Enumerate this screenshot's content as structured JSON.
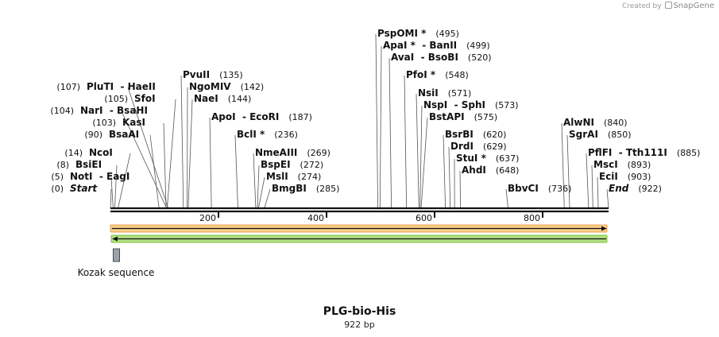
{
  "credit": {
    "created_by": "Created by",
    "brand": "SnapGene"
  },
  "map": {
    "title": "PLG-bio-His",
    "length_label": "922 bp",
    "total_bp": 922,
    "ruler_ticks": [
      200,
      400,
      600,
      800
    ],
    "colors": {
      "backbone": "#111111",
      "orange_feature": "#f5a623",
      "orange_border": "#e8a25a",
      "green_feature": "#8fd14f",
      "green_border": "#78c23c",
      "kozak_box": "#9aa3ad"
    },
    "features": [
      {
        "name": "kozak",
        "label": "Kozak sequence",
        "start": 8,
        "end": 20
      }
    ],
    "sites": [
      {
        "label": "Start",
        "pos": 0,
        "pos_label": "(0)",
        "side": "left",
        "italic": true
      },
      {
        "label": "NotI  - EagI",
        "pos": 5,
        "pos_label": "(5)",
        "side": "left"
      },
      {
        "label": "BsiEI",
        "pos": 8,
        "pos_label": "(8)",
        "side": "left"
      },
      {
        "label": "NcoI",
        "pos": 14,
        "pos_label": "(14)",
        "side": "left"
      },
      {
        "label": "BsaAI",
        "pos": 90,
        "pos_label": "(90)",
        "side": "left"
      },
      {
        "label": "KasI",
        "pos": 103,
        "pos_label": "(103)",
        "side": "left"
      },
      {
        "label": "NarI  - BsaHI",
        "pos": 104,
        "pos_label": "(104)",
        "side": "left"
      },
      {
        "label": "SfoI",
        "pos": 105,
        "pos_label": "(105)",
        "side": "left"
      },
      {
        "label": "PluTI  - HaeII",
        "pos": 107,
        "pos_label": "(107)",
        "side": "left"
      },
      {
        "label": "PvuII",
        "pos": 135,
        "pos_label": "(135)",
        "side": "right"
      },
      {
        "label": "NgoMIV",
        "pos": 142,
        "pos_label": "(142)",
        "side": "right"
      },
      {
        "label": "NaeI",
        "pos": 144,
        "pos_label": "(144)",
        "side": "right"
      },
      {
        "label": "ApoI  - EcoRI",
        "pos": 187,
        "pos_label": "(187)",
        "side": "right"
      },
      {
        "label": "BclI *",
        "pos": 236,
        "pos_label": "(236)",
        "side": "right"
      },
      {
        "label": "NmeAIII",
        "pos": 269,
        "pos_label": "(269)",
        "side": "right"
      },
      {
        "label": "BspEI",
        "pos": 272,
        "pos_label": "(272)",
        "side": "right"
      },
      {
        "label": "MslI",
        "pos": 274,
        "pos_label": "(274)",
        "side": "right"
      },
      {
        "label": "BmgBI",
        "pos": 285,
        "pos_label": "(285)",
        "side": "right"
      },
      {
        "label": "PspOMI *",
        "pos": 495,
        "pos_label": "(495)",
        "side": "right"
      },
      {
        "label": "ApaI *  - BanII",
        "pos": 499,
        "pos_label": "(499)",
        "side": "right"
      },
      {
        "label": "AvaI  - BsoBI",
        "pos": 520,
        "pos_label": "(520)",
        "side": "right"
      },
      {
        "label": "PfoI *",
        "pos": 548,
        "pos_label": "(548)",
        "side": "right"
      },
      {
        "label": "NsiI",
        "pos": 571,
        "pos_label": "(571)",
        "side": "right"
      },
      {
        "label": "NspI  - SphI",
        "pos": 573,
        "pos_label": "(573)",
        "side": "right"
      },
      {
        "label": "BstAPI",
        "pos": 575,
        "pos_label": "(575)",
        "side": "right"
      },
      {
        "label": "BsrBI",
        "pos": 620,
        "pos_label": "(620)",
        "side": "right"
      },
      {
        "label": "DrdI",
        "pos": 629,
        "pos_label": "(629)",
        "side": "right"
      },
      {
        "label": "StuI *",
        "pos": 637,
        "pos_label": "(637)",
        "side": "right"
      },
      {
        "label": "AhdI",
        "pos": 648,
        "pos_label": "(648)",
        "side": "right"
      },
      {
        "label": "BbvCI",
        "pos": 736,
        "pos_label": "(736)",
        "side": "right"
      },
      {
        "label": "AlwNI",
        "pos": 840,
        "pos_label": "(840)",
        "side": "right"
      },
      {
        "label": "SgrAI",
        "pos": 850,
        "pos_label": "(850)",
        "side": "right"
      },
      {
        "label": "PflFI  - Tth111I",
        "pos": 885,
        "pos_label": "(885)",
        "side": "right"
      },
      {
        "label": "MscI",
        "pos": 893,
        "pos_label": "(893)",
        "side": "right"
      },
      {
        "label": "EciI",
        "pos": 903,
        "pos_label": "(903)",
        "side": "right"
      },
      {
        "label": "End",
        "pos": 922,
        "pos_label": "(922)",
        "side": "right",
        "italic": true
      }
    ]
  }
}
